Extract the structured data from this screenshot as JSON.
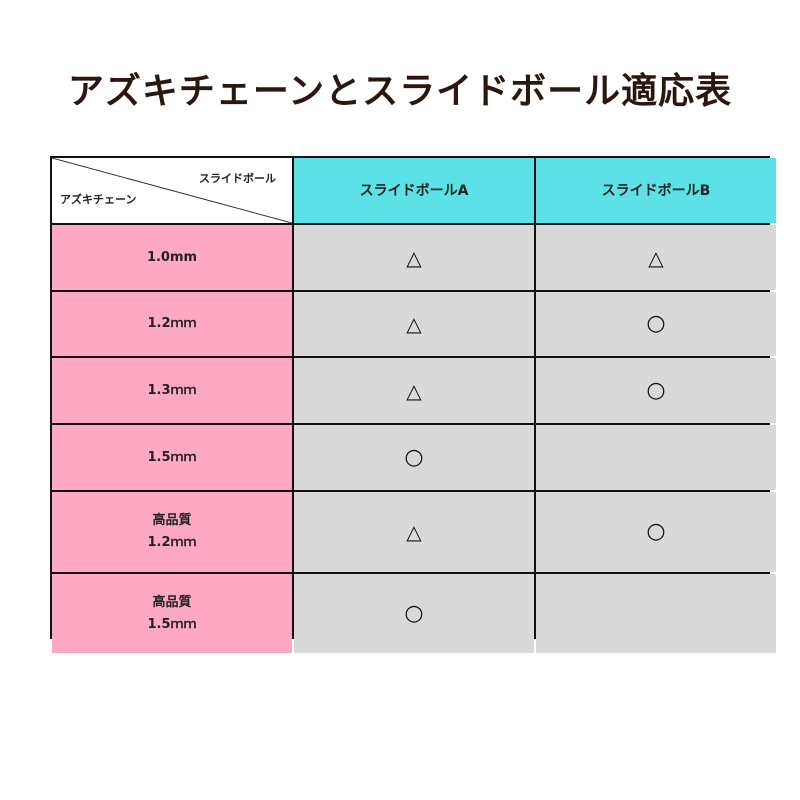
{
  "title": "アズキチェーンとスライドボール適応表",
  "table": {
    "corner": {
      "column_axis": "スライドボール",
      "row_axis": "アズキチェーン"
    },
    "columns": [
      "スライドボールA",
      "スライドボールB"
    ],
    "rows": [
      {
        "label": [
          "1.0mm"
        ],
        "values": [
          "△",
          "△"
        ]
      },
      {
        "label": [
          "1.2ｍｍ"
        ],
        "values": [
          "△",
          "○"
        ]
      },
      {
        "label": [
          "1.3ｍｍ"
        ],
        "values": [
          "△",
          "○"
        ]
      },
      {
        "label": [
          "1.5ｍｍ"
        ],
        "values": [
          "○",
          ""
        ]
      },
      {
        "label": [
          "高品質",
          "1.2ｍｍ"
        ],
        "values": [
          "△",
          "○"
        ]
      },
      {
        "label": [
          "高品質",
          "1.5ｍｍ"
        ],
        "values": [
          "○",
          ""
        ]
      }
    ]
  },
  "colors": {
    "header": "#5ce1e6",
    "row_header": "#fda9c4",
    "value_cell": "#d9d9d9",
    "title": "#2a1810"
  }
}
